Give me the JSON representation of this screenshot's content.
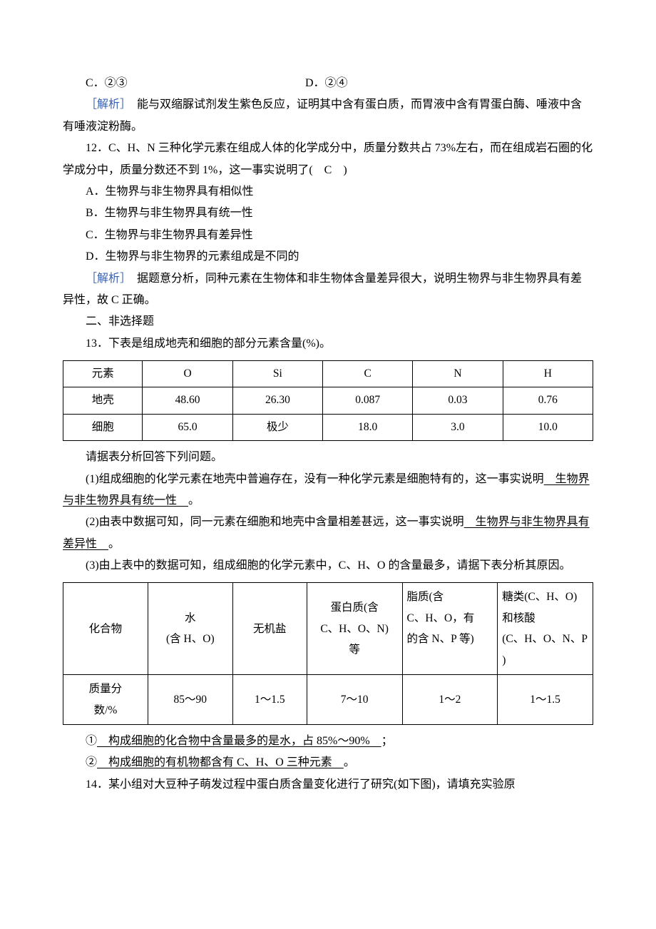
{
  "options": {
    "c": "C．②③",
    "d": "D．②④"
  },
  "analysis1": {
    "label": "［解析］",
    "text": "　能与双缩脲试剂发生紫色反应，证明其中含有蛋白质，而胃液中含有胃蛋白酶、唾液中含有唾液淀粉酶。"
  },
  "q12": {
    "stem": "12．C、H、N 三种化学元素在组成人体的化学成分中，质量分数共占 73%左右，而在组成岩石圈的化学成分中，质量分数还不到 1%，这一事实说明了(　C　)",
    "a": "A．生物界与非生物界具有相似性",
    "b": "B．生物界与非生物界具有统一性",
    "c": "C．生物界与非生物界具有差异性",
    "d": "D．生物界与非生物界的元素组成是不同的"
  },
  "analysis2": {
    "label": "［解析］",
    "text": "　据题意分析，同种元素在生物体和非生物体含量差异很大，说明生物界与非生物界具有差异性，故 C 正确。"
  },
  "section2": "二、非选择题",
  "q13": {
    "stem": "13．下表是组成地壳和细胞的部分元素含量(%)。",
    "table": {
      "r1": [
        "元素",
        "O",
        "Si",
        "C",
        "N",
        "H"
      ],
      "r2": [
        "地壳",
        "48.60",
        "26.30",
        "0.087",
        "0.03",
        "0.76"
      ],
      "r3": [
        "细胞",
        "65.0",
        "极少",
        "18.0",
        "3.0",
        "10.0"
      ]
    },
    "afterTable": "请据表分析回答下列问题。",
    "p1a": "(1)组成细胞的化学元素在地壳中普遍存在，没有一种化学元素是细胞特有的，这一事实说明",
    "p1u": "　生物界与非生物界具有统一性　",
    "p1b": "。",
    "p2a": "(2)由表中数据可知，同一元素在细胞和地壳中含量相差甚远，这一事实说明",
    "p2u": "　生物界与非生物界具有差异性　",
    "p2b": "。",
    "p3": "(3)由上表中的数据可知，组成细胞的化学元素中，C、H、O 的含量最多，请据下表分析其原因。",
    "table2": {
      "r1": [
        "化合物",
        "水\n(含 H、O)",
        "无机盐",
        "蛋白质(含C、H、O、N)等",
        "脂质(含C、H、O，有的含 N、P 等)",
        "糖类(C、H、O)和核酸(C、H、O、N、P)"
      ],
      "r2": [
        "质量分数/%",
        "85～90",
        "1～1.5",
        "7～10",
        "1～2",
        "1～1.5"
      ]
    },
    "a1pre": "①",
    "a1u": "　构成细胞的化合物中含量最多的是水，占 85%～90%　",
    "a1post": "；",
    "a2pre": "②",
    "a2u": "　构成细胞的有机物都含有 C、H、O 三种元素　",
    "a2post": "。"
  },
  "q14": "14．某小组对大豆种子萌发过程中蛋白质含量变化进行了研究(如下图)，请填充实验原"
}
